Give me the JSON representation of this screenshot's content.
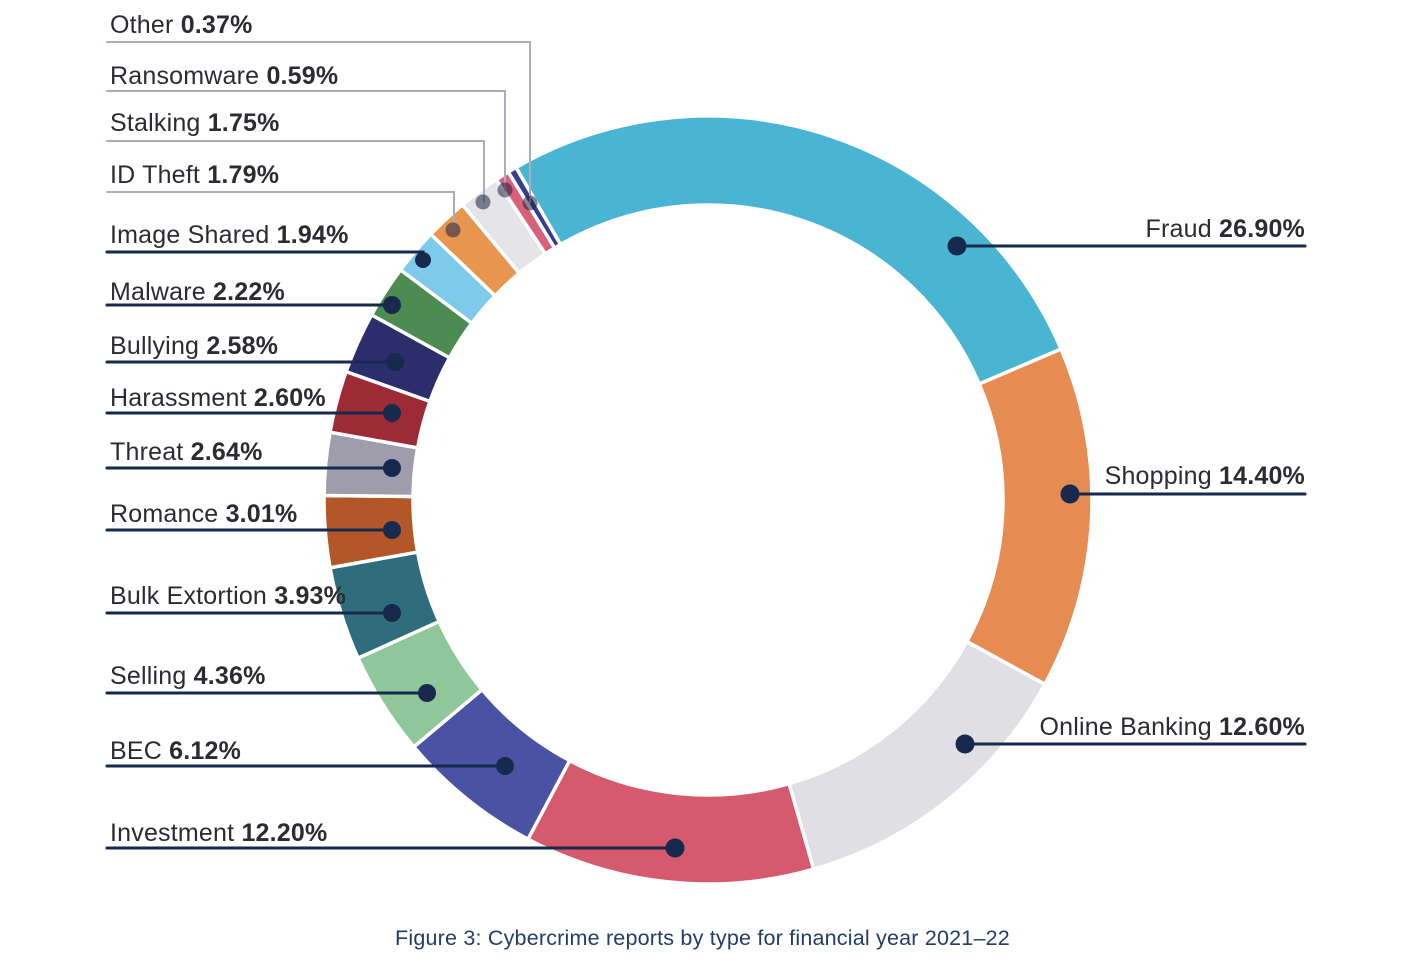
{
  "figure_caption": "Figure 3: Cybercrime reports by type for financial year 2021–22",
  "chart_data": {
    "type": "pie",
    "subtype": "donut",
    "title": "Cybercrime reports by type for financial year 2021–22",
    "unit": "percent",
    "total": 100,
    "start_angle_deg": -30,
    "direction": "clockwise",
    "legend_position": "callout-labels-left-and-right",
    "slices": [
      {
        "label": "Fraud",
        "value": 26.9,
        "display": "26.90%",
        "color": "#4ab5d3",
        "label_side": "right"
      },
      {
        "label": "Shopping",
        "value": 14.4,
        "display": "14.40%",
        "color": "#e68c53",
        "label_side": "right"
      },
      {
        "label": "Online Banking",
        "value": 12.6,
        "display": "12.60%",
        "color": "#e0e0e4",
        "label_side": "right"
      },
      {
        "label": "Investment",
        "value": 12.2,
        "display": "12.20%",
        "color": "#d55a6e",
        "label_side": "left"
      },
      {
        "label": "BEC",
        "value": 6.12,
        "display": "6.12%",
        "color": "#4a52a3",
        "label_side": "left"
      },
      {
        "label": "Selling",
        "value": 4.36,
        "display": "4.36%",
        "color": "#8fc79b",
        "label_side": "left"
      },
      {
        "label": "Bulk Extortion",
        "value": 3.93,
        "display": "3.93%",
        "color": "#2f6d7d",
        "label_side": "left"
      },
      {
        "label": "Romance",
        "value": 3.01,
        "display": "3.01%",
        "color": "#b35628",
        "label_side": "left"
      },
      {
        "label": "Threat",
        "value": 2.64,
        "display": "2.64%",
        "color": "#9f9cab",
        "label_side": "left"
      },
      {
        "label": "Harassment",
        "value": 2.6,
        "display": "2.60%",
        "color": "#9c2b36",
        "label_side": "left"
      },
      {
        "label": "Bullying",
        "value": 2.58,
        "display": "2.58%",
        "color": "#2c2e6b",
        "label_side": "left"
      },
      {
        "label": "Malware",
        "value": 2.22,
        "display": "2.22%",
        "color": "#4c8b52",
        "label_side": "left"
      },
      {
        "label": "Image Shared",
        "value": 1.94,
        "display": "1.94%",
        "color": "#7ecaea",
        "label_side": "left"
      },
      {
        "label": "ID Theft",
        "value": 1.79,
        "display": "1.79%",
        "color": "#e8964f",
        "label_side": "left"
      },
      {
        "label": "Stalking",
        "value": 1.75,
        "display": "1.75%",
        "color": "#e5e5e8",
        "label_side": "left"
      },
      {
        "label": "Ransomware",
        "value": 0.59,
        "display": "0.59%",
        "color": "#d8607b",
        "label_side": "left"
      },
      {
        "label": "Other",
        "value": 0.37,
        "display": "0.37%",
        "color": "#3a3d8b",
        "label_side": "left"
      }
    ]
  },
  "colors": {
    "background": "#ffffff",
    "connector_dark": "#17294d",
    "connector_light": "#aaacbf",
    "label_text": "#2b2b31",
    "caption_text": "#223d66",
    "slice_gap": "#ffffff"
  }
}
